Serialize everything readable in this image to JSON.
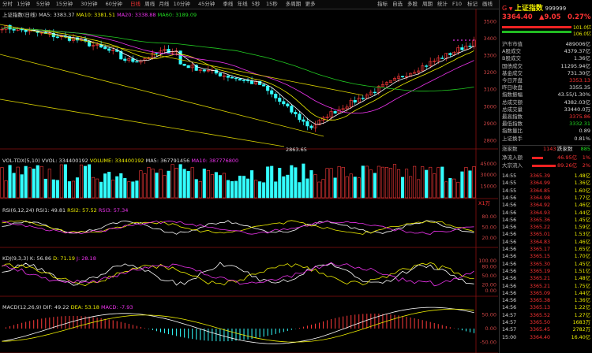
{
  "toolbar": {
    "periods": [
      "分时",
      "1分钟",
      "5分钟",
      "15分钟",
      "30分钟",
      "60分钟",
      "日线",
      "周线",
      "月线",
      "10分钟",
      "45分钟",
      "季线",
      "年线",
      "5秒",
      "15秒",
      "多周期",
      "更多"
    ],
    "active_period": "日线",
    "right_items": [
      "指标",
      "自选",
      "多股",
      "周期",
      "统计",
      "F10",
      "标记",
      "画线"
    ]
  },
  "main_pane": {
    "title": "上证指数(日线)",
    "ma5": "MA5: 3383.37",
    "ma10": "MA10: 3381.51",
    "ma20": "MA20: 3338.88",
    "ma60": "MA60: 3189.09",
    "yticks": [
      "3500",
      "3400",
      "3300",
      "3200",
      "3100",
      "3000",
      "2900",
      "2800"
    ],
    "low_label": "2863.65"
  },
  "vol_pane": {
    "title": "VOL-TDX(5,10)",
    "vvol": "VVOL: 334400192",
    "volume": "VOLUME: 334400192",
    "ma5": "MA5: 367791456",
    "ma10": "MA10: 387776800",
    "yticks": [
      "45000",
      "30000",
      "15000"
    ],
    "unit": "X1万"
  },
  "rsi_pane": {
    "title": "RSI(6,12,24)",
    "rsi1": "RSI1: 49.81",
    "rsi2": "RSI2: 57.52",
    "rsi3": "RSI3: 57.34",
    "yticks": [
      "80.00",
      "50.00",
      "20.00"
    ]
  },
  "kdj_pane": {
    "title": "KDJ(9,3,3)",
    "k": "K: 56.86",
    "d": "D: 71.19",
    "j": "J: 28.18",
    "yticks": [
      "100.00",
      "80.00",
      "50.00",
      "20.00",
      "0.00"
    ]
  },
  "macd_pane": {
    "title": "MACD(12,26,9)",
    "dif": "DIF: 49.22",
    "dea": "DEA: 53.18",
    "macd": "MACD: -7.93",
    "yticks": [
      "50.00",
      "0.00",
      "-50.00"
    ]
  },
  "panel": {
    "code_prefix": "G",
    "name": "上证指数",
    "code": "999999",
    "price": "3364.40",
    "change": "▲9.05",
    "pct": "0.27%",
    "bar_up_value": "101.0亿",
    "bar_down_value": "106.0亿",
    "stats": [
      {
        "k": "沪市市值",
        "v": "489006亿",
        "c": "white"
      },
      {
        "k": "A股成交",
        "v": "4379.37亿",
        "c": "white"
      },
      {
        "k": "B股成交",
        "v": "1.36亿",
        "c": "white"
      },
      {
        "k": "国债成交",
        "v": "11295.94亿",
        "c": "white"
      },
      {
        "k": "基金成交",
        "v": "731.30亿",
        "c": "white"
      },
      {
        "k": "今日开盘",
        "v": "3353.13",
        "c": "red"
      },
      {
        "k": "昨日收盘",
        "v": "3355.35",
        "c": "white"
      },
      {
        "k": "指数振幅",
        "v": "43.55/1.30%",
        "c": "white"
      },
      {
        "k": "总成交额",
        "v": "4382.03亿",
        "c": "white"
      },
      {
        "k": "总成交量",
        "v": "33440.0万",
        "c": "white"
      },
      {
        "k": "最高指数",
        "v": "3375.86",
        "c": "red"
      },
      {
        "k": "最低指数",
        "v": "3332.31",
        "c": "green"
      },
      {
        "k": "指数量比",
        "v": "0.89",
        "c": "white"
      },
      {
        "k": "上证换手",
        "v": "0.81%",
        "c": "white"
      }
    ],
    "rise_label": "涨家数",
    "rise_value": "1143",
    "fall_label": "跌家数",
    "fall_value": "885",
    "inflow": [
      {
        "k": "净流入额",
        "v": "46.95亿",
        "p": "1%"
      },
      {
        "k": "大宗流入",
        "v": "89.26亿",
        "p": "2%"
      }
    ],
    "ticks": [
      [
        "14:55",
        "3365.39",
        "1.48亿"
      ],
      [
        "14:55",
        "3364.99",
        "1.36亿"
      ],
      [
        "14:55",
        "3364.85",
        "1.60亿"
      ],
      [
        "14:56",
        "3364.98",
        "1.77亿"
      ],
      [
        "14:56",
        "3364.92",
        "1.46亿"
      ],
      [
        "14:56",
        "3364.93",
        "1.44亿"
      ],
      [
        "14:56",
        "3365.36",
        "1.45亿"
      ],
      [
        "14:56",
        "3365.22",
        "1.59亿"
      ],
      [
        "14:56",
        "3365.01",
        "1.53亿"
      ],
      [
        "14:56",
        "3364.83",
        "1.46亿"
      ],
      [
        "14:56",
        "3365.17",
        "1.65亿"
      ],
      [
        "14:56",
        "3365.15",
        "1.70亿"
      ],
      [
        "14:56",
        "3365.30",
        "1.45亿"
      ],
      [
        "14:56",
        "3365.19",
        "1.51亿"
      ],
      [
        "14:56",
        "3365.21",
        "1.48亿"
      ],
      [
        "14:56",
        "3365.21",
        "1.75亿"
      ],
      [
        "14:56",
        "3365.09",
        "1.44亿"
      ],
      [
        "14:56",
        "3365.38",
        "1.36亿"
      ],
      [
        "14:56",
        "3365.13",
        "1.22亿"
      ],
      [
        "14:57",
        "3365.52",
        "1.27亿"
      ],
      [
        "14:57",
        "3365.50",
        "1683万"
      ],
      [
        "14:57",
        "3365.45",
        "2782万"
      ],
      [
        "15:00",
        "3364.40",
        "16.40亿"
      ]
    ]
  }
}
